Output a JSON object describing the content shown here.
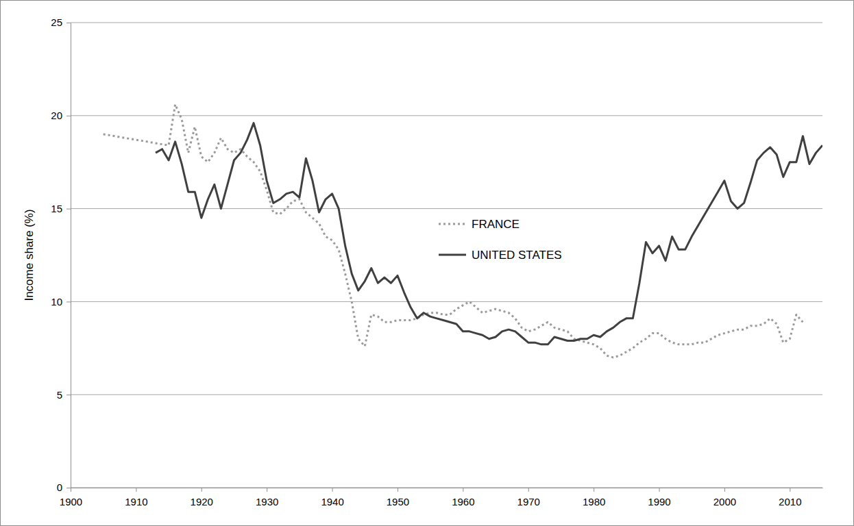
{
  "chart_data": {
    "type": "line",
    "y_label": "Income share (%)",
    "xlim": [
      1900,
      2015
    ],
    "xticks": [
      1900,
      1910,
      1920,
      1930,
      1940,
      1950,
      1960,
      1970,
      1980,
      1990,
      2000,
      2010
    ],
    "ylim": [
      0,
      25
    ],
    "yticks": [
      0,
      5,
      10,
      15,
      20,
      25
    ],
    "grid": true,
    "legend": "center",
    "series": [
      {
        "name": "FRANCE",
        "color": "#9a9a9a",
        "line_style": "dotted",
        "x": [
          1905,
          1915,
          1916,
          1917,
          1918,
          1919,
          1920,
          1921,
          1922,
          1923,
          1924,
          1925,
          1926,
          1927,
          1928,
          1929,
          1930,
          1931,
          1932,
          1933,
          1934,
          1935,
          1936,
          1937,
          1938,
          1939,
          1940,
          1941,
          1942,
          1943,
          1944,
          1945,
          1946,
          1947,
          1948,
          1949,
          1950,
          1951,
          1952,
          1953,
          1954,
          1955,
          1956,
          1957,
          1958,
          1959,
          1960,
          1961,
          1962,
          1963,
          1964,
          1965,
          1966,
          1967,
          1968,
          1969,
          1970,
          1971,
          1972,
          1973,
          1974,
          1975,
          1976,
          1977,
          1978,
          1979,
          1980,
          1981,
          1982,
          1983,
          1984,
          1985,
          1986,
          1987,
          1988,
          1989,
          1990,
          1991,
          1992,
          1993,
          1994,
          1995,
          1996,
          1997,
          1998,
          1999,
          2000,
          2001,
          2002,
          2003,
          2004,
          2005,
          2006,
          2007,
          2008,
          2009,
          2010,
          2011,
          2012
        ],
        "values": [
          19.0,
          18.4,
          20.6,
          19.8,
          18.0,
          19.4,
          17.8,
          17.5,
          18.0,
          18.8,
          18.2,
          18.0,
          18.2,
          17.8,
          17.5,
          17.0,
          16.0,
          14.8,
          14.7,
          15.0,
          15.4,
          15.5,
          14.8,
          14.5,
          14.2,
          13.5,
          13.3,
          12.8,
          11.5,
          10.0,
          8.0,
          7.6,
          9.3,
          9.2,
          8.9,
          8.9,
          9.0,
          9.0,
          9.0,
          9.1,
          9.3,
          9.4,
          9.4,
          9.3,
          9.3,
          9.6,
          9.8,
          10.0,
          9.7,
          9.4,
          9.5,
          9.6,
          9.5,
          9.4,
          9.1,
          8.6,
          8.4,
          8.5,
          8.7,
          8.9,
          8.6,
          8.5,
          8.4,
          8.0,
          7.9,
          7.8,
          7.7,
          7.5,
          7.1,
          7.0,
          7.1,
          7.3,
          7.5,
          7.8,
          8.0,
          8.3,
          8.3,
          8.0,
          7.8,
          7.7,
          7.7,
          7.7,
          7.8,
          7.8,
          8.0,
          8.2,
          8.3,
          8.4,
          8.5,
          8.5,
          8.7,
          8.7,
          8.8,
          9.1,
          8.8,
          7.8,
          8.0,
          9.3,
          8.9
        ]
      },
      {
        "name": "UNITED STATES",
        "color": "#404040",
        "line_style": "solid",
        "x": [
          1913,
          1914,
          1915,
          1916,
          1917,
          1918,
          1919,
          1920,
          1921,
          1922,
          1923,
          1924,
          1925,
          1926,
          1927,
          1928,
          1929,
          1930,
          1931,
          1932,
          1933,
          1934,
          1935,
          1936,
          1937,
          1938,
          1939,
          1940,
          1941,
          1942,
          1943,
          1944,
          1945,
          1946,
          1947,
          1948,
          1949,
          1950,
          1951,
          1952,
          1953,
          1954,
          1955,
          1956,
          1957,
          1958,
          1959,
          1960,
          1961,
          1962,
          1963,
          1964,
          1965,
          1966,
          1967,
          1968,
          1969,
          1970,
          1971,
          1972,
          1973,
          1974,
          1975,
          1976,
          1977,
          1978,
          1979,
          1980,
          1981,
          1982,
          1983,
          1984,
          1985,
          1986,
          1987,
          1988,
          1989,
          1990,
          1991,
          1992,
          1993,
          1994,
          1995,
          1996,
          1997,
          1998,
          1999,
          2000,
          2001,
          2002,
          2003,
          2004,
          2005,
          2006,
          2007,
          2008,
          2009,
          2010,
          2011,
          2012,
          2013,
          2014,
          2015
        ],
        "values": [
          18.0,
          18.2,
          17.6,
          18.6,
          17.4,
          15.9,
          15.9,
          14.5,
          15.5,
          16.3,
          15.0,
          16.3,
          17.6,
          18.0,
          18.7,
          19.6,
          18.4,
          16.5,
          15.3,
          15.5,
          15.8,
          15.9,
          15.6,
          17.7,
          16.5,
          14.8,
          15.5,
          15.8,
          15.0,
          13.0,
          11.5,
          10.6,
          11.1,
          11.8,
          11.0,
          11.3,
          11.0,
          11.4,
          10.5,
          9.7,
          9.1,
          9.4,
          9.2,
          9.1,
          9.0,
          8.9,
          8.8,
          8.4,
          8.4,
          8.3,
          8.2,
          8.0,
          8.1,
          8.4,
          8.5,
          8.4,
          8.1,
          7.8,
          7.8,
          7.7,
          7.7,
          8.1,
          8.0,
          7.9,
          7.9,
          8.0,
          8.0,
          8.2,
          8.1,
          8.4,
          8.6,
          8.9,
          9.1,
          9.1,
          11.0,
          13.2,
          12.6,
          13.0,
          12.2,
          13.5,
          12.8,
          12.8,
          13.5,
          14.1,
          14.7,
          15.3,
          15.9,
          16.5,
          15.4,
          15.0,
          15.3,
          16.4,
          17.6,
          18.0,
          18.3,
          17.9,
          16.7,
          17.5,
          17.5,
          18.9,
          17.4,
          18.0,
          18.4
        ]
      }
    ]
  }
}
